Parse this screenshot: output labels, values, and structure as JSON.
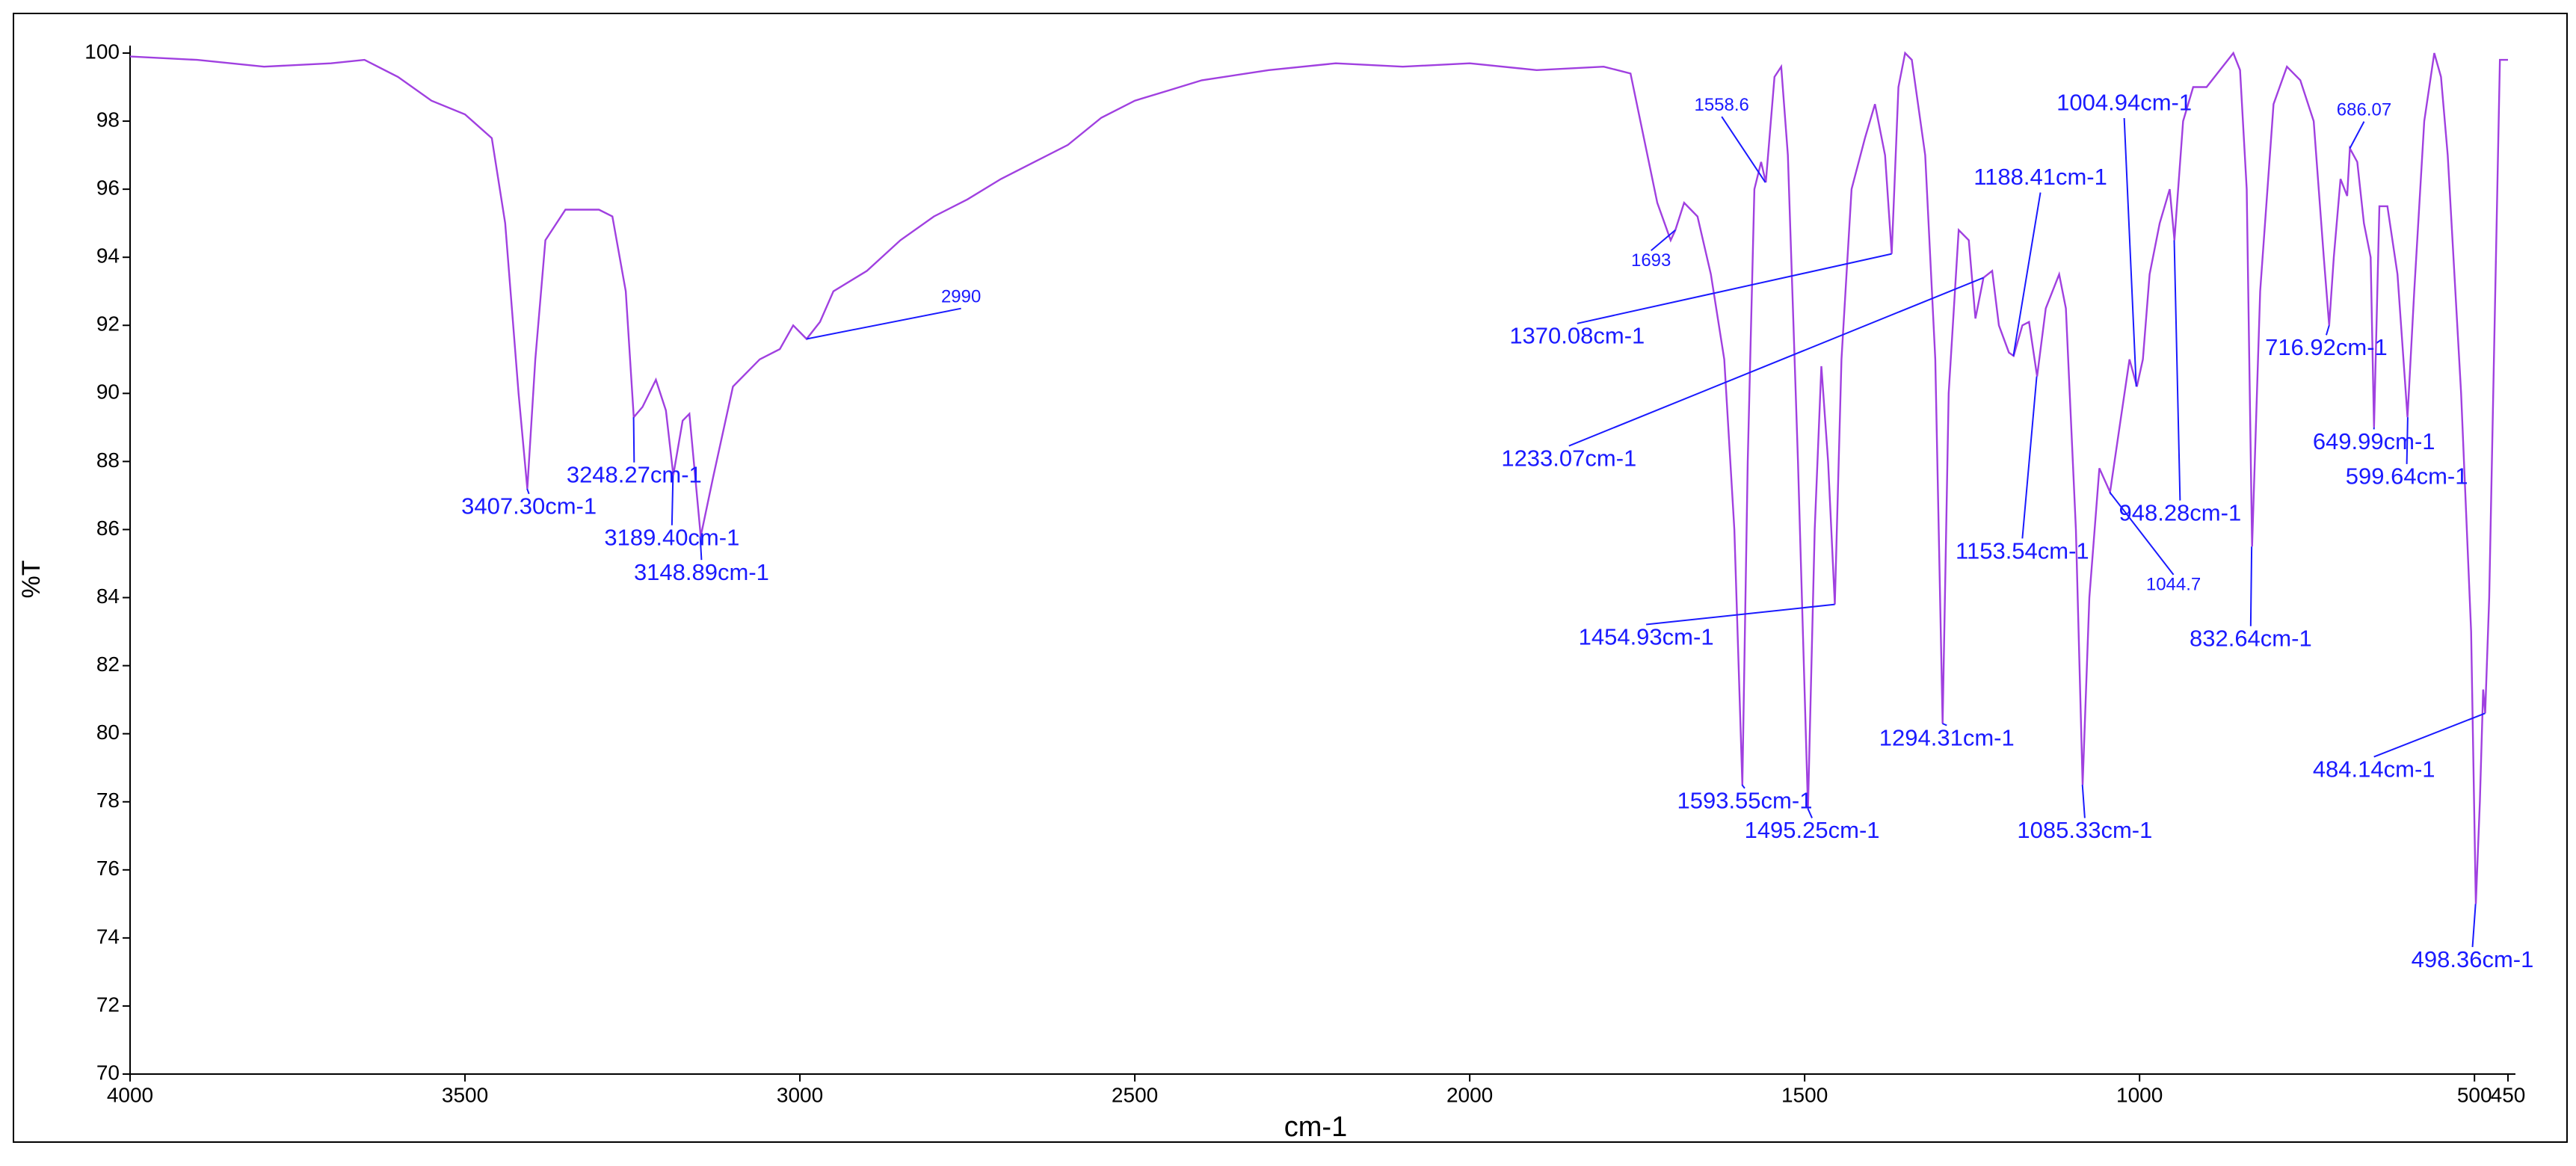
{
  "chart_data": {
    "type": "line",
    "x_label": "cm-1",
    "y_label": "%T",
    "xlim": [
      4000,
      450
    ],
    "ylim": [
      70,
      100
    ],
    "xticks": [
      4000,
      3500,
      3000,
      2500,
      2000,
      1500,
      1000,
      500,
      450
    ],
    "yticks": [
      70,
      72,
      74,
      76,
      78,
      80,
      82,
      84,
      86,
      88,
      90,
      92,
      94,
      96,
      98,
      100
    ],
    "color": "#a040e0",
    "annotation_color": "#1a1aff",
    "x": [
      4000,
      3900,
      3800,
      3700,
      3650,
      3600,
      3550,
      3500,
      3460,
      3440,
      3420,
      3407,
      3395,
      3380,
      3350,
      3300,
      3280,
      3260,
      3248,
      3235,
      3215,
      3200,
      3189,
      3175,
      3165,
      3148,
      3130,
      3100,
      3060,
      3030,
      3010,
      2990,
      2970,
      2950,
      2900,
      2850,
      2800,
      2750,
      2700,
      2650,
      2600,
      2550,
      2500,
      2450,
      2400,
      2300,
      2200,
      2100,
      2000,
      1900,
      1800,
      1760,
      1740,
      1720,
      1700,
      1693,
      1680,
      1660,
      1640,
      1620,
      1605,
      1593,
      1585,
      1575,
      1565,
      1558,
      1545,
      1535,
      1525,
      1510,
      1495,
      1485,
      1475,
      1465,
      1455,
      1445,
      1430,
      1410,
      1395,
      1380,
      1370,
      1360,
      1350,
      1340,
      1320,
      1305,
      1294,
      1285,
      1270,
      1255,
      1245,
      1233,
      1220,
      1210,
      1195,
      1188,
      1175,
      1165,
      1153,
      1140,
      1120,
      1110,
      1095,
      1085,
      1075,
      1060,
      1044,
      1030,
      1015,
      1004,
      995,
      985,
      970,
      955,
      948,
      935,
      920,
      900,
      880,
      860,
      850,
      840,
      832,
      820,
      800,
      780,
      760,
      740,
      725,
      717,
      710,
      700,
      690,
      686,
      675,
      665,
      655,
      650,
      642,
      630,
      615,
      600,
      590,
      575,
      560,
      550,
      540,
      520,
      505,
      498,
      492,
      487,
      484,
      478,
      470,
      462,
      450
    ],
    "values": [
      99.9,
      99.8,
      99.6,
      99.7,
      99.8,
      99.3,
      98.6,
      98.2,
      97.5,
      95,
      90,
      87.2,
      91,
      94.5,
      95.4,
      95.4,
      95.2,
      93,
      89.3,
      89.6,
      90.4,
      89.5,
      87.6,
      89.2,
      89.4,
      85.8,
      87.5,
      90.2,
      91,
      91.3,
      92,
      91.6,
      92.1,
      93,
      93.6,
      94.5,
      95.2,
      95.7,
      96.3,
      96.8,
      97.3,
      98.1,
      98.6,
      98.9,
      99.2,
      99.5,
      99.7,
      99.6,
      99.7,
      99.5,
      99.6,
      99.4,
      97.5,
      95.6,
      94.5,
      94.8,
      95.6,
      95.2,
      93.5,
      91,
      86,
      78.5,
      88,
      96,
      96.8,
      96.2,
      99.3,
      99.6,
      97,
      88,
      77.8,
      86,
      90.8,
      88,
      83.8,
      91,
      96,
      97.5,
      98.5,
      97,
      94.1,
      99,
      100,
      99.8,
      97,
      91,
      80.3,
      90,
      94.8,
      94.5,
      92.2,
      93.4,
      93.6,
      92,
      91.2,
      91.1,
      92,
      92.1,
      90.5,
      92.5,
      93.5,
      92.5,
      86,
      78.5,
      84,
      87.8,
      87.1,
      89,
      91,
      90.2,
      91,
      93.5,
      95,
      96,
      94.5,
      98,
      99,
      99,
      99.5,
      100,
      99.5,
      96,
      85.5,
      93,
      98.5,
      99.6,
      99.2,
      98,
      94,
      92,
      94,
      96.3,
      95.8,
      97.2,
      96.8,
      95,
      94,
      89,
      95.5,
      95.5,
      93.5,
      89.3,
      93,
      98,
      100,
      99.3,
      97,
      90,
      83,
      75,
      78,
      81.3,
      80.6,
      84,
      92,
      99.8,
      99.8
    ],
    "annotations": [
      {
        "label": "3407.30cm-1",
        "x": 3407.3,
        "y": 87.2
      },
      {
        "label": "3248.27cm-1",
        "x": 3248.27,
        "y": 89.3
      },
      {
        "label": "3189.40cm-1",
        "x": 3189.4,
        "y": 87.6
      },
      {
        "label": "3148.89cm-1",
        "x": 3148.89,
        "y": 85.8
      },
      {
        "label": "2990",
        "x": 2990,
        "y": 91.6
      },
      {
        "label": "1693",
        "x": 1693,
        "y": 94.8
      },
      {
        "label": "1558.6",
        "x": 1558.6,
        "y": 96.2
      },
      {
        "label": "1370.08cm-1",
        "x": 1370.08,
        "y": 94.1
      },
      {
        "label": "1233.07cm-1",
        "x": 1233.07,
        "y": 93.4
      },
      {
        "label": "1454.93cm-1",
        "x": 1454.93,
        "y": 83.8
      },
      {
        "label": "1593.55cm-1",
        "x": 1593.55,
        "y": 78.5
      },
      {
        "label": "1495.25cm-1",
        "x": 1495.25,
        "y": 77.8
      },
      {
        "label": "1294.31cm-1",
        "x": 1294.31,
        "y": 80.3
      },
      {
        "label": "1188.41cm-1",
        "x": 1188.41,
        "y": 91.1
      },
      {
        "label": "1153.54cm-1",
        "x": 1153.54,
        "y": 90.5
      },
      {
        "label": "1085.33cm-1",
        "x": 1085.33,
        "y": 78.5
      },
      {
        "label": "1044.7",
        "x": 1044.7,
        "y": 87.1
      },
      {
        "label": "1004.94cm-1",
        "x": 1004.94,
        "y": 90.2
      },
      {
        "label": "948.28cm-1",
        "x": 948.28,
        "y": 94.5
      },
      {
        "label": "832.64cm-1",
        "x": 832.64,
        "y": 85.5
      },
      {
        "label": "716.92cm-1",
        "x": 716.92,
        "y": 92
      },
      {
        "label": "686.07",
        "x": 686.07,
        "y": 97.2
      },
      {
        "label": "649.99cm-1",
        "x": 649.99,
        "y": 89
      },
      {
        "label": "599.64cm-1",
        "x": 599.64,
        "y": 89.3
      },
      {
        "label": "484.14cm-1",
        "x": 484.14,
        "y": 80.6
      },
      {
        "label": "498.36cm-1",
        "x": 498.36,
        "y": 75
      }
    ]
  }
}
